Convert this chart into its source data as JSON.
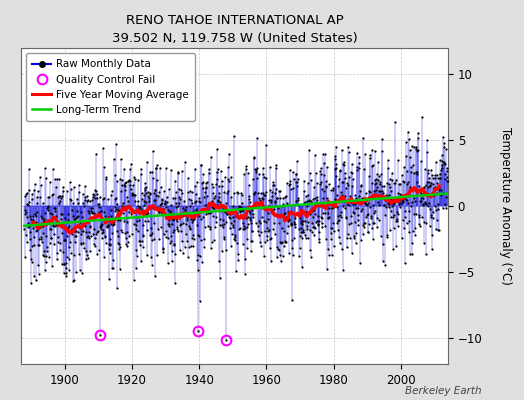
{
  "title": "RENO TAHOE INTERNATIONAL AP",
  "subtitle": "39.502 N, 119.758 W (United States)",
  "ylabel": "Temperature Anomaly (°C)",
  "credit": "Berkeley Earth",
  "year_start": 1888,
  "year_end": 2013,
  "ylim": [
    -12,
    12
  ],
  "yticks": [
    -10,
    -5,
    0,
    5,
    10
  ],
  "legend_labels": [
    "Raw Monthly Data",
    "Quality Control Fail",
    "Five Year Moving Average",
    "Long-Term Trend"
  ],
  "raw_color": "#0000dd",
  "dot_color": "#000000",
  "qc_color": "#ff00ff",
  "moving_avg_color": "#ff0000",
  "trend_color": "#00cc00",
  "background_color": "#e0e0e0",
  "plot_bg_color": "#ffffff",
  "grid_color": "#c0c0c0",
  "seed": 37
}
